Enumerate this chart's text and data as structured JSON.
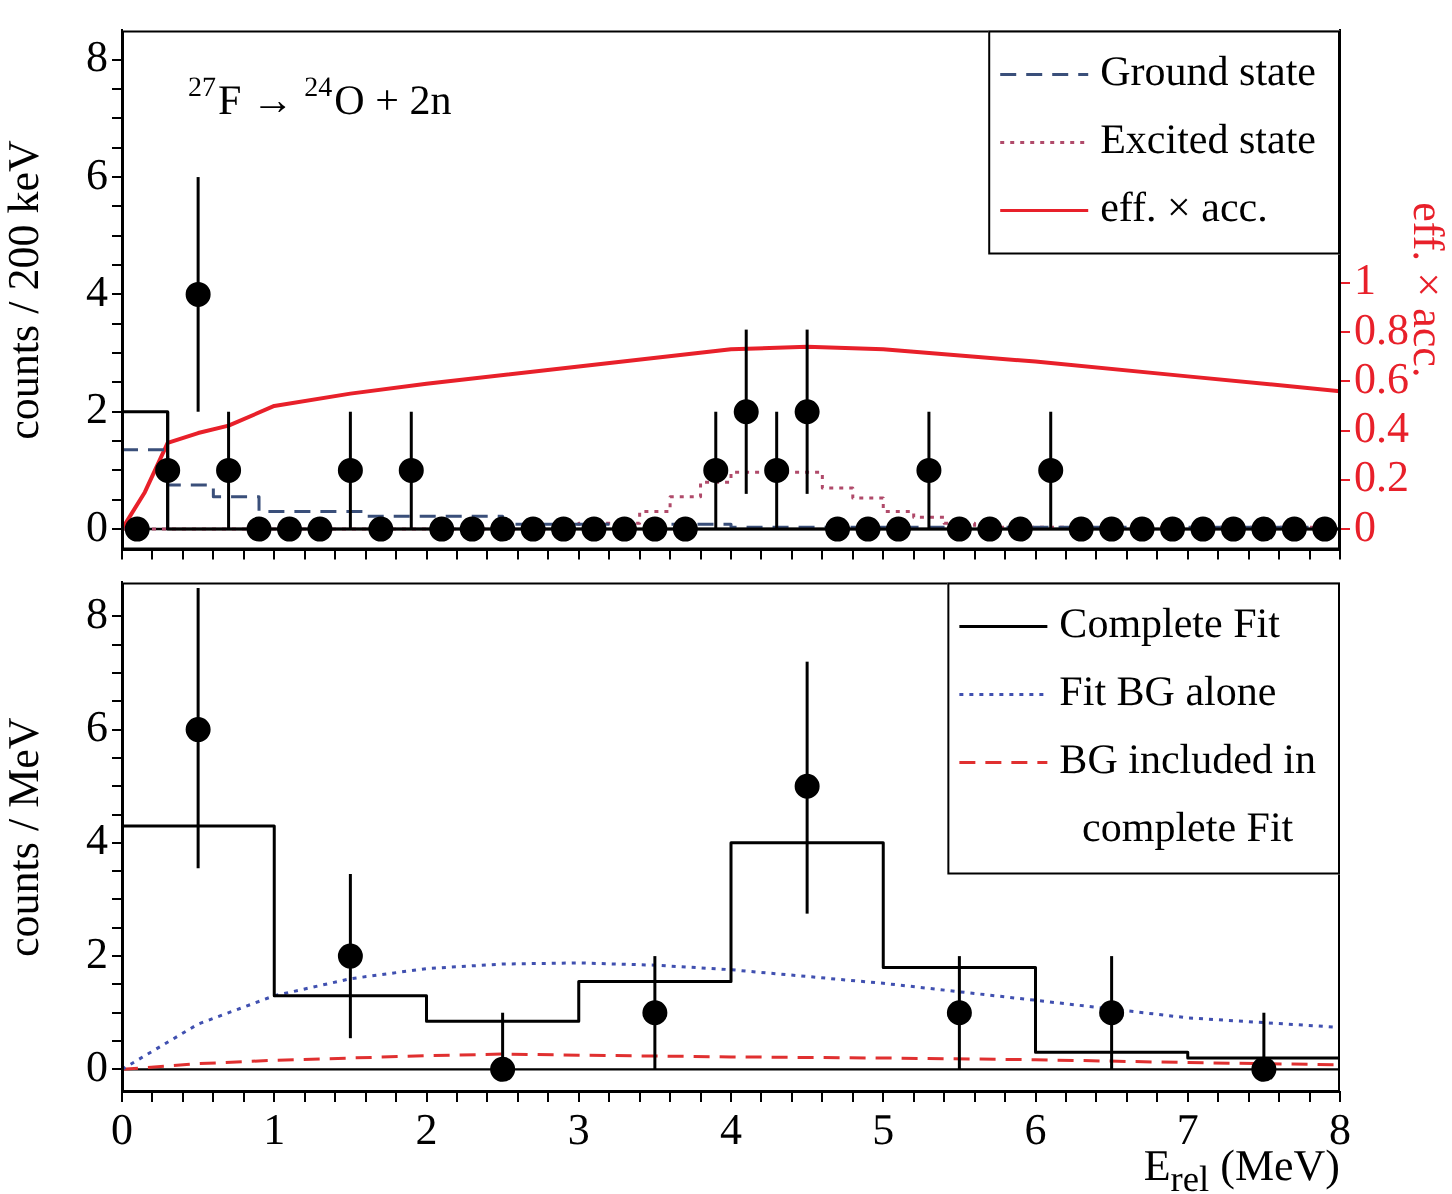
{
  "chart_data": [
    {
      "type": "scatter",
      "ylabel": "counts / 200 keV",
      "y2label": "eff. × acc.",
      "annotations": [
        "$^{27}$F → $^{24}$O + 2n"
      ],
      "xlim": [
        0,
        8
      ],
      "xticks": [
        0,
        {
          "value": 0.2,
          "label": null
        },
        {
          "value": 0.4,
          "label": null
        },
        {
          "value": 0.6,
          "label": null
        },
        {
          "value": 0.8,
          "label": null
        },
        1,
        {
          "value": 1.2,
          "label": null
        },
        {
          "value": 1.4,
          "label": null
        },
        {
          "value": 1.6,
          "label": null
        },
        {
          "value": 1.8,
          "label": null
        },
        2,
        {
          "value": 2.2,
          "label": null
        },
        {
          "value": 2.4,
          "label": null
        },
        {
          "value": 2.6,
          "label": null
        },
        {
          "value": 2.8,
          "label": null
        },
        3,
        {
          "value": 3.2,
          "label": null
        },
        {
          "value": 3.4,
          "label": null
        },
        {
          "value": 3.6,
          "label": null
        },
        {
          "value": 3.8,
          "label": null
        },
        4,
        {
          "value": 4.2,
          "label": null
        },
        {
          "value": 4.4,
          "label": null
        },
        {
          "value": 4.6,
          "label": null
        },
        {
          "value": 4.8,
          "label": null
        },
        5,
        {
          "value": 5.2,
          "label": null
        },
        {
          "value": 5.4,
          "label": null
        },
        {
          "value": 5.6,
          "label": null
        },
        {
          "value": 5.8,
          "label": null
        },
        6,
        {
          "value": 6.2,
          "label": null
        },
        {
          "value": 6.4,
          "label": null
        },
        {
          "value": 6.6,
          "label": null
        },
        {
          "value": 6.8,
          "label": null
        },
        7,
        {
          "value": 7.2,
          "label": null
        },
        {
          "value": 7.4,
          "label": null
        },
        {
          "value": 7.6,
          "label": null
        },
        {
          "value": 7.8,
          "label": null
        },
        8
      ],
      "ylim": [
        -0.35,
        8.5
      ],
      "yticks": [
        0,
        {
          "value": 0.5,
          "label": null
        },
        {
          "value": 1,
          "label": null
        },
        {
          "value": 1.5,
          "label": null
        },
        2,
        {
          "value": 2.5,
          "label": null
        },
        {
          "value": 3,
          "label": null
        },
        {
          "value": 3.5,
          "label": null
        },
        4,
        {
          "value": 4.5,
          "label": null
        },
        {
          "value": 5,
          "label": null
        },
        {
          "value": 5.5,
          "label": null
        },
        6,
        {
          "value": 6.5,
          "label": null
        },
        {
          "value": 7,
          "label": null
        },
        {
          "value": 7.5,
          "label": null
        },
        8
      ],
      "y2lim": [
        -0.083,
        2.024
      ],
      "y2ticks": [
        0,
        0.2,
        0.4,
        0.6,
        0.8,
        1
      ],
      "tick_labels": "y",
      "legend": "top right",
      "ref_lines": [
        {
          "axis": "y",
          "value": 0,
          "color": "#000000"
        }
      ],
      "series": [
        {
          "type": "scatter",
          "color": "#000000",
          "marker": "circle",
          "x": [
            0.1,
            0.3,
            0.5,
            0.7,
            0.9,
            1.1,
            1.3,
            1.5,
            1.7,
            1.9,
            2.1,
            2.3,
            2.5,
            2.7,
            2.9,
            3.1,
            3.3,
            3.5,
            3.7,
            3.9,
            4.1,
            4.3,
            4.5,
            4.7,
            4.9,
            5.1,
            5.3,
            5.5,
            5.7,
            5.9,
            6.1,
            6.3,
            6.5,
            6.7,
            6.9,
            7.1,
            7.3,
            7.5,
            7.7,
            7.9
          ],
          "values": [
            0,
            1,
            4,
            1,
            0,
            0,
            0,
            1,
            0,
            1,
            0,
            0,
            0,
            0,
            0,
            0,
            0,
            0,
            0,
            1,
            2,
            1,
            2,
            0,
            0,
            0,
            1,
            0,
            0,
            0,
            1,
            0,
            0,
            0,
            0,
            0,
            0,
            0,
            0,
            0
          ],
          "errors": [
            null,
            [
              0,
              2
            ],
            [
              2,
              6
            ],
            [
              0,
              2
            ],
            null,
            null,
            null,
            [
              0,
              2
            ],
            null,
            [
              0,
              2
            ],
            null,
            null,
            null,
            null,
            null,
            null,
            null,
            null,
            null,
            [
              0,
              2
            ],
            [
              0.6,
              3.4
            ],
            [
              0,
              2
            ],
            [
              0.6,
              3.4
            ],
            null,
            null,
            null,
            [
              0,
              2
            ],
            null,
            null,
            null,
            [
              0,
              2
            ],
            null,
            null,
            null,
            null,
            null,
            null,
            null,
            null,
            null
          ]
        },
        {
          "type": "step",
          "color": "#000000",
          "marker": "none",
          "line_style": "solid",
          "x": [
            0,
            0.3,
            8
          ],
          "values": [
            2,
            0,
            0
          ]
        },
        {
          "type": "step",
          "name": "Ground state",
          "color": "#3a4f7a",
          "marker": "none",
          "line_style": "dashed",
          "x": [
            0,
            0.3,
            0.6,
            0.9,
            1.6,
            2.5,
            4.0,
            8
          ],
          "values": [
            1.35,
            0.75,
            0.55,
            0.3,
            0.22,
            0.08,
            0.03,
            0.03
          ]
        },
        {
          "type": "step",
          "name": "Excited state",
          "color": "#b04a6a",
          "marker": "none",
          "line_style": "dotted",
          "x": [
            0,
            3.0,
            3.4,
            3.6,
            3.8,
            4.0,
            4.6,
            4.8,
            5.0,
            5.2,
            5.4,
            5.6,
            8
          ],
          "values": [
            0,
            0.1,
            0.3,
            0.55,
            0.8,
            0.97,
            0.7,
            0.53,
            0.3,
            0.2,
            0.1,
            0.03,
            0.03
          ]
        },
        {
          "type": "line",
          "name": "eff. × acc.",
          "color": "#e8202a",
          "marker": "none",
          "line_style": "solid",
          "axis": "y2",
          "x": [
            0,
            0.15,
            0.3,
            0.5,
            0.7,
            1,
            1.5,
            2,
            3,
            4,
            4.5,
            5,
            6,
            7,
            8
          ],
          "values": [
            0,
            0.15,
            0.35,
            0.39,
            0.42,
            0.5,
            0.55,
            0.59,
            0.66,
            0.73,
            0.74,
            0.73,
            0.68,
            0.62,
            0.56
          ]
        }
      ]
    },
    {
      "type": "scatter",
      "ylabel": "counts / MeV",
      "xlabel": "E$_{rel}$ (MeV)",
      "xlim": [
        0,
        8
      ],
      "xticks": [
        0,
        {
          "value": 0.2,
          "label": null
        },
        {
          "value": 0.4,
          "label": null
        },
        {
          "value": 0.6,
          "label": null
        },
        {
          "value": 0.8,
          "label": null
        },
        1,
        {
          "value": 1.2,
          "label": null
        },
        {
          "value": 1.4,
          "label": null
        },
        {
          "value": 1.6,
          "label": null
        },
        {
          "value": 1.8,
          "label": null
        },
        2,
        {
          "value": 2.2,
          "label": null
        },
        {
          "value": 2.4,
          "label": null
        },
        {
          "value": 2.6,
          "label": null
        },
        {
          "value": 2.8,
          "label": null
        },
        3,
        {
          "value": 3.2,
          "label": null
        },
        {
          "value": 3.4,
          "label": null
        },
        {
          "value": 3.6,
          "label": null
        },
        {
          "value": 3.8,
          "label": null
        },
        4,
        {
          "value": 4.2,
          "label": null
        },
        {
          "value": 4.4,
          "label": null
        },
        {
          "value": 4.6,
          "label": null
        },
        {
          "value": 4.8,
          "label": null
        },
        5,
        {
          "value": 5.2,
          "label": null
        },
        {
          "value": 5.4,
          "label": null
        },
        {
          "value": 5.6,
          "label": null
        },
        {
          "value": 5.8,
          "label": null
        },
        6,
        {
          "value": 6.2,
          "label": null
        },
        {
          "value": 6.4,
          "label": null
        },
        {
          "value": 6.6,
          "label": null
        },
        {
          "value": 6.8,
          "label": null
        },
        7,
        {
          "value": 7.2,
          "label": null
        },
        {
          "value": 7.4,
          "label": null
        },
        {
          "value": 7.6,
          "label": null
        },
        {
          "value": 7.8,
          "label": null
        },
        8
      ],
      "ylim": [
        -0.4,
        8.6
      ],
      "yticks": [
        0,
        {
          "value": 0.5,
          "label": null
        },
        {
          "value": 1,
          "label": null
        },
        {
          "value": 1.5,
          "label": null
        },
        2,
        {
          "value": 2.5,
          "label": null
        },
        {
          "value": 3,
          "label": null
        },
        {
          "value": 3.5,
          "label": null
        },
        4,
        {
          "value": 4.5,
          "label": null
        },
        {
          "value": 5,
          "label": null
        },
        {
          "value": 5.5,
          "label": null
        },
        6,
        {
          "value": 6.5,
          "label": null
        },
        {
          "value": 7,
          "label": null
        },
        {
          "value": 7.5,
          "label": null
        },
        8
      ],
      "legend": "top right",
      "ref_lines": [
        {
          "axis": "y",
          "value": 0,
          "color": "#000000"
        }
      ],
      "series": [
        {
          "type": "scatter",
          "color": "#000000",
          "marker": "circle",
          "x": [
            0.5,
            1.5,
            2.5,
            3.5,
            4.5,
            5.5,
            6.5,
            7.5
          ],
          "values": [
            6,
            2,
            0,
            1,
            5,
            1,
            1,
            0
          ],
          "errors": [
            [
              3.55,
              8.5
            ],
            [
              0.55,
              3.45
            ],
            [
              0,
              1
            ],
            [
              0,
              2
            ],
            [
              2.75,
              7.2
            ],
            [
              0,
              2
            ],
            [
              0,
              2
            ],
            [
              0,
              1
            ]
          ]
        },
        {
          "type": "step",
          "name": "Complete Fit",
          "color": "#000000",
          "marker": "none",
          "line_style": "solid",
          "x": [
            0,
            1,
            2,
            3,
            4,
            5,
            6,
            7,
            8
          ],
          "values": [
            4.3,
            1.3,
            0.85,
            1.55,
            4.0,
            1.8,
            0.3,
            0.2,
            0.2
          ]
        },
        {
          "type": "line",
          "name": "Fit BG alone",
          "color": "#4050b0",
          "marker": "none",
          "line_style": "dotted",
          "x": [
            0,
            0.5,
            1,
            1.5,
            2,
            2.5,
            3,
            3.5,
            4,
            5,
            6,
            7,
            8
          ],
          "values": [
            0,
            0.8,
            1.3,
            1.6,
            1.78,
            1.86,
            1.88,
            1.84,
            1.76,
            1.52,
            1.22,
            0.91,
            0.74
          ]
        },
        {
          "type": "line",
          "name": "BG included in complete Fit",
          "color": "#e03030",
          "marker": "none",
          "line_style": "dashed",
          "x": [
            0,
            0.5,
            1,
            2,
            2.5,
            3,
            4,
            5,
            6,
            7,
            8
          ],
          "values": [
            0,
            0.1,
            0.16,
            0.24,
            0.27,
            0.25,
            0.22,
            0.2,
            0.17,
            0.12,
            0.08
          ]
        }
      ]
    }
  ]
}
